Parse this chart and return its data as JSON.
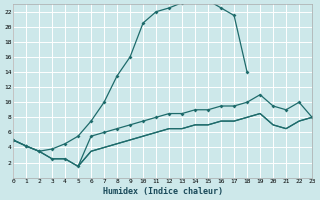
{
  "background_color": "#cde8ea",
  "grid_color": "#ffffff",
  "line_color": "#1e6b6b",
  "xlabel": "Humidex (Indice chaleur)",
  "xlim": [
    0,
    23
  ],
  "ylim": [
    0,
    23
  ],
  "yticks": [
    2,
    4,
    6,
    8,
    10,
    12,
    14,
    16,
    18,
    20,
    22
  ],
  "xticks": [
    0,
    1,
    2,
    3,
    4,
    5,
    6,
    7,
    8,
    9,
    10,
    11,
    12,
    13,
    14,
    15,
    16,
    17,
    18,
    19,
    20,
    21,
    22,
    23
  ],
  "curve1_x": [
    0,
    1,
    2,
    3,
    4,
    5,
    6,
    7,
    8,
    9,
    10,
    11,
    12,
    13,
    14,
    15,
    16,
    17,
    18
  ],
  "curve1_y": [
    5,
    4.2,
    3.5,
    3.8,
    4.5,
    5.5,
    7.5,
    10,
    13.5,
    16,
    20.5,
    22,
    22.5,
    23.2,
    23.5,
    23.5,
    22.5,
    21.5,
    14
  ],
  "curve2_x": [
    0,
    1,
    2,
    3,
    4,
    5,
    6,
    7,
    8,
    9,
    10,
    11,
    12,
    13,
    14,
    15,
    16,
    17,
    18,
    19,
    20,
    21,
    22,
    23
  ],
  "curve2_y": [
    5,
    4.2,
    3.5,
    2.5,
    2.5,
    1.5,
    5.5,
    6,
    6.5,
    7,
    7.5,
    8,
    8.5,
    8.5,
    9,
    9,
    9.5,
    9.5,
    10,
    11,
    9.5,
    9,
    10,
    8
  ],
  "curve3_x": [
    0,
    1,
    2,
    3,
    4,
    5,
    6,
    7,
    8,
    9,
    10,
    11,
    12,
    13,
    14,
    15,
    16,
    17,
    18,
    19,
    20,
    21,
    22,
    23
  ],
  "curve3_y": [
    5,
    4.2,
    3.5,
    2.5,
    2.5,
    1.5,
    3.5,
    4,
    4.5,
    5,
    5.5,
    6,
    6.5,
    6.5,
    7,
    7,
    7.5,
    7.5,
    8,
    8.5,
    7,
    6.5,
    7.5,
    8
  ],
  "curve4_x": [
    5,
    6,
    7,
    8,
    9,
    10,
    11,
    12,
    13,
    14,
    15,
    16,
    17,
    18,
    19,
    20,
    21,
    22,
    23
  ],
  "curve4_y": [
    1.5,
    3.5,
    4,
    4.5,
    5,
    5.5,
    6,
    6.5,
    6.5,
    7,
    7,
    7.5,
    7.5,
    8,
    8.5,
    7,
    6.5,
    7.5,
    8
  ]
}
